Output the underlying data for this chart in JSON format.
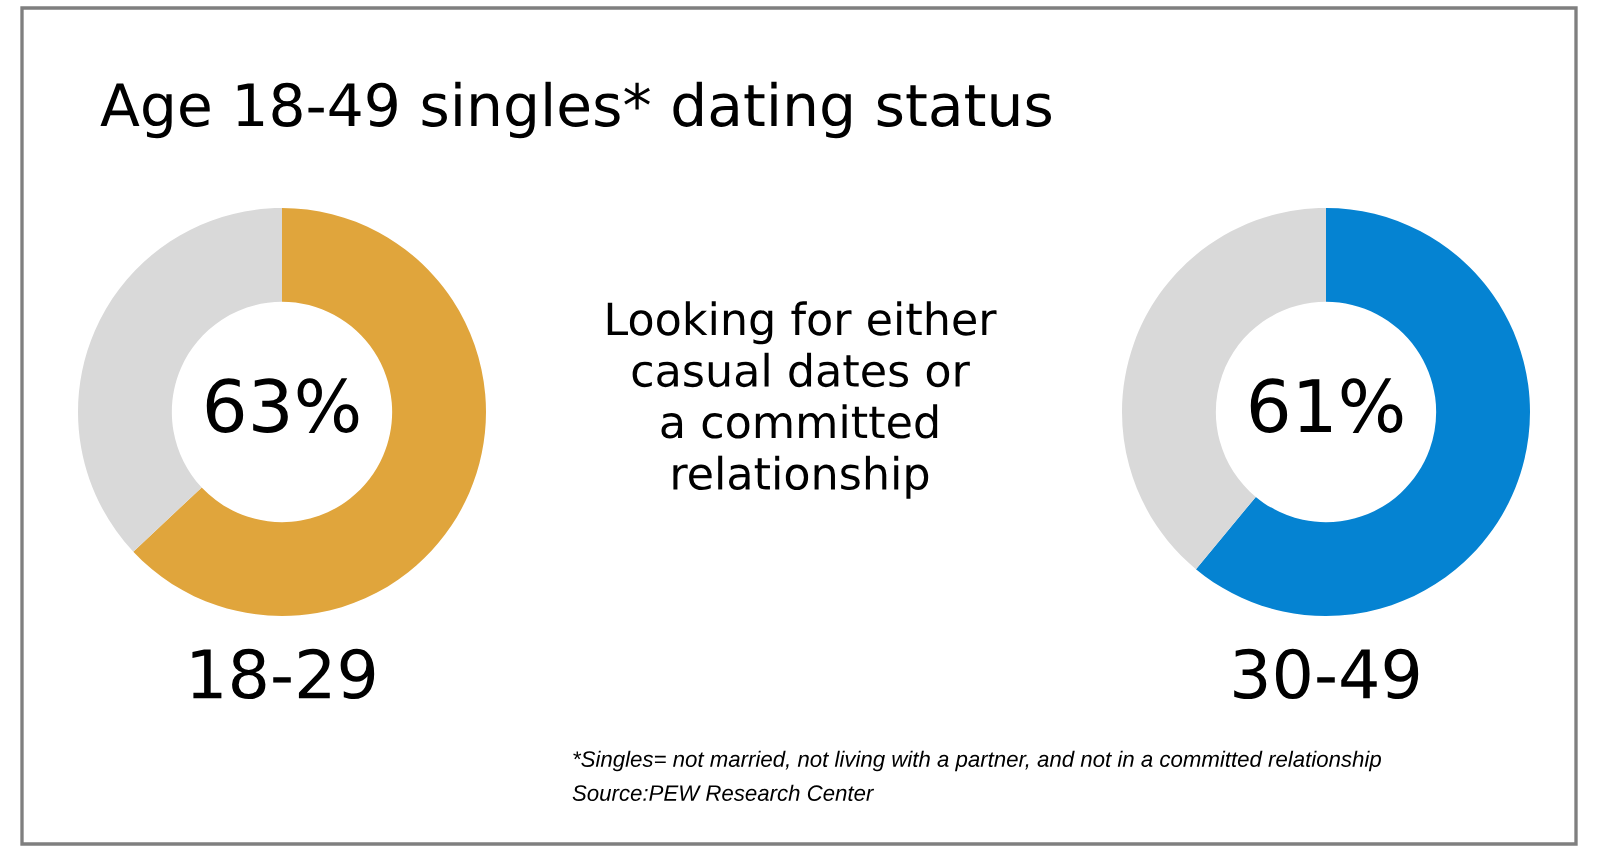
{
  "chart_data": [
    {
      "type": "donut",
      "title": "Age 18-49 singles* dating status",
      "categories": [
        null,
        null
      ],
      "values": [
        63,
        37
      ],
      "colors": [
        "#e0a53c",
        "#d9d9d9"
      ],
      "value_labels": [
        "63%",
        null
      ],
      "xlabel": "18-29"
    },
    {
      "type": "other",
      "annotations": [
        "Looking for either\ncasual dates or\na committed\nrelationship"
      ]
    },
    {
      "type": "donut",
      "categories": [
        null,
        null
      ],
      "values": [
        61,
        39
      ],
      "colors": [
        "#0583d2",
        "#d9d9d9"
      ],
      "value_labels": [
        "61%",
        null
      ],
      "xlabel": "30-49"
    },
    {
      "type": "other",
      "annotations": [
        "*Singles= not married, not living with a partner, and not in a committed relationship",
        "Source:PEW Research Center"
      ]
    }
  ]
}
